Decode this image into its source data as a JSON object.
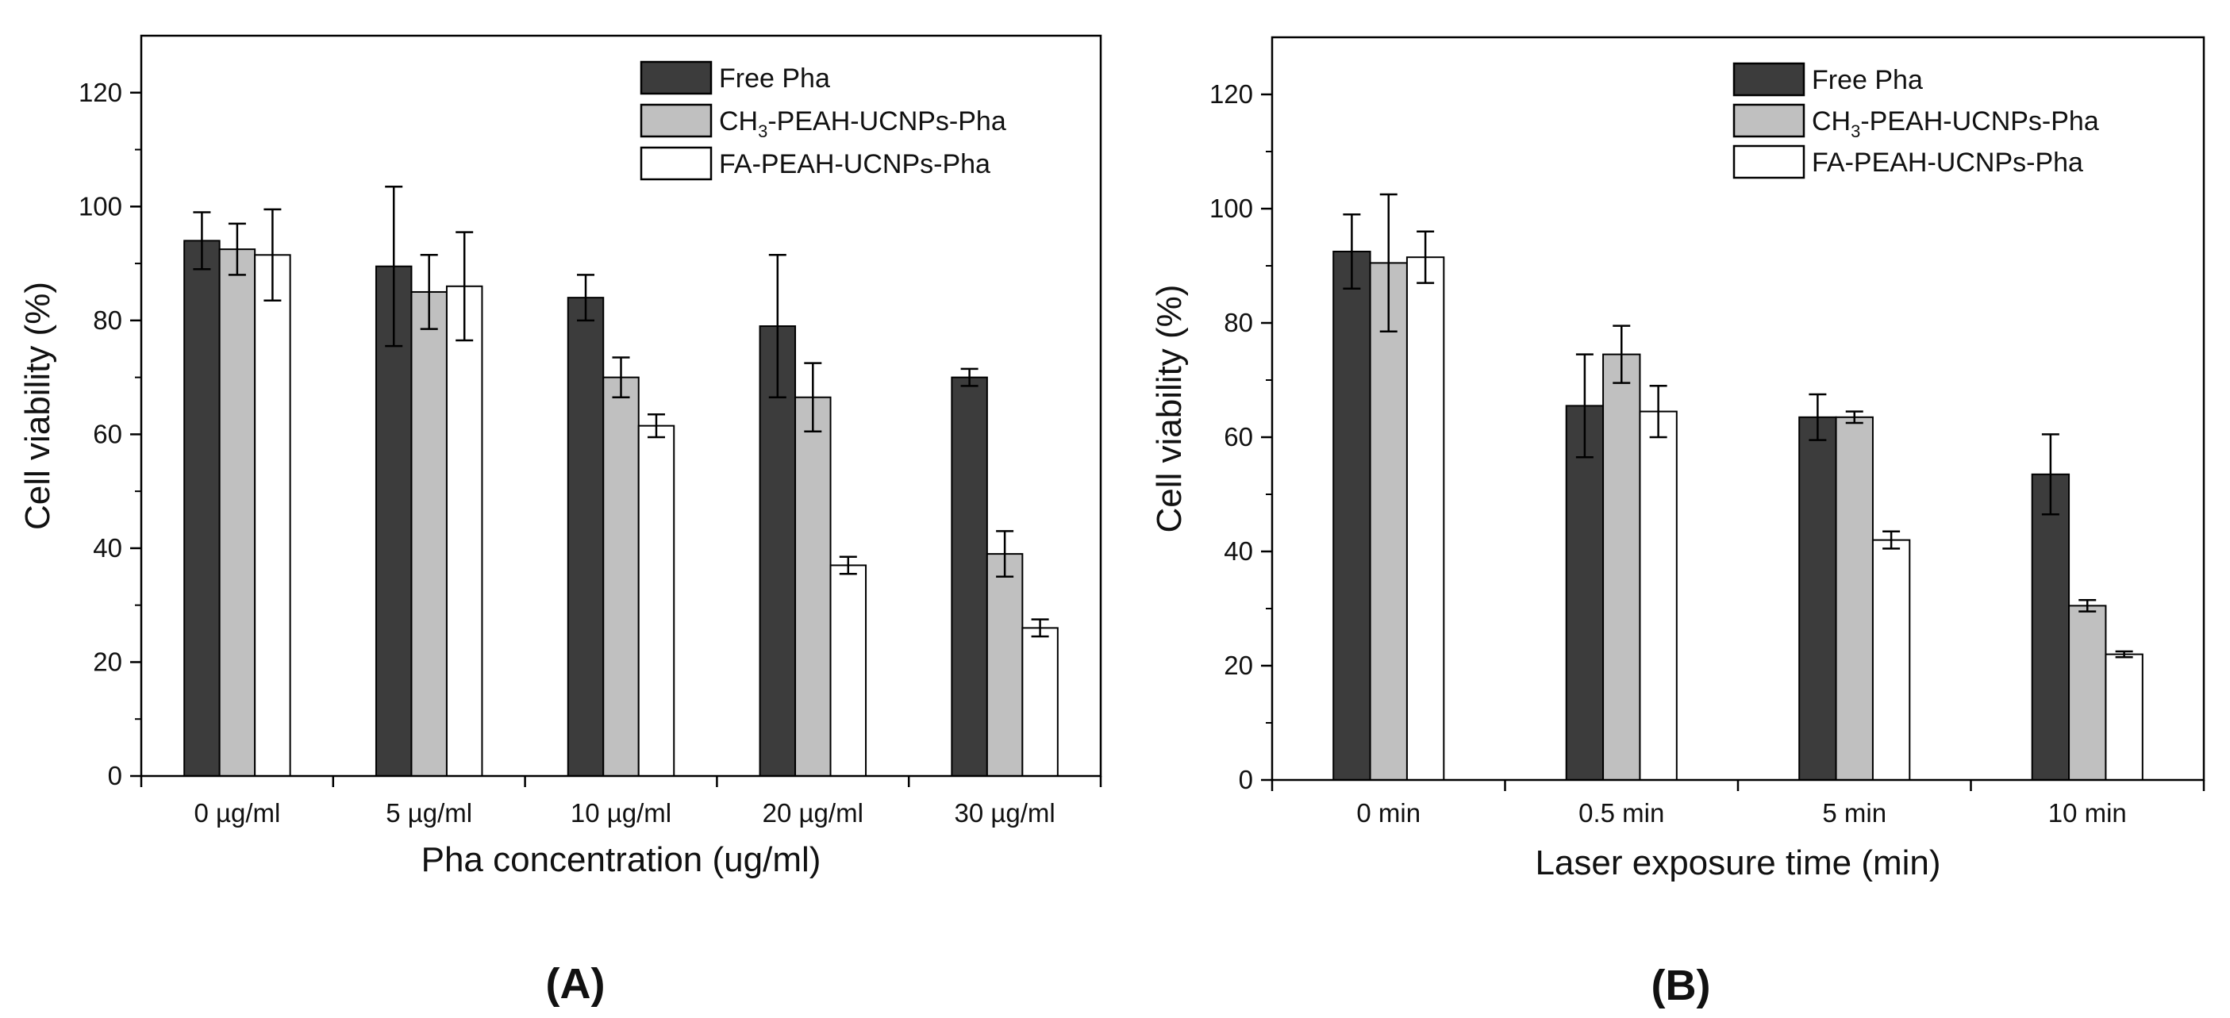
{
  "colors": {
    "free": "#3c3c3c",
    "ch3": "#c0c0c0",
    "fa": "#ffffff",
    "stroke": "#000000",
    "error": "#000000"
  },
  "chart_data": [
    {
      "type": "bar",
      "panel_label": "(A)",
      "xlabel": "Pha concentration (ug/ml)",
      "ylabel": "Cell viability (%)",
      "ylim": [
        0,
        130
      ],
      "yticks": [
        0,
        20,
        40,
        60,
        80,
        100,
        120
      ],
      "categories": [
        "0 µg/ml",
        "5 µg/ml",
        "10 µg/ml",
        "20 µg/ml",
        "30 µg/ml"
      ],
      "legend_position": "top-right",
      "series": [
        {
          "name": "Free Pha",
          "name_parts": [
            "Free Pha"
          ],
          "color_key": "free",
          "values": [
            94,
            89.5,
            84,
            79,
            70
          ],
          "errors": [
            5,
            14,
            4,
            12.5,
            1.5
          ]
        },
        {
          "name": "CH3-PEAH-UCNPs-Pha",
          "name_parts": [
            "CH",
            "3",
            "-PEAH-UCNPs-Pha"
          ],
          "color_key": "ch3",
          "values": [
            92.5,
            85,
            70,
            66.5,
            39
          ],
          "errors": [
            4.5,
            6.5,
            3.5,
            6,
            4
          ]
        },
        {
          "name": "FA-PEAH-UCNPs-Pha",
          "name_parts": [
            "FA-PEAH-UCNPs-Pha"
          ],
          "color_key": "fa",
          "values": [
            91.5,
            86,
            61.5,
            37,
            26
          ],
          "errors": [
            8,
            9.5,
            2,
            1.5,
            1.5
          ]
        }
      ]
    },
    {
      "type": "bar",
      "panel_label": "(B)",
      "xlabel": "Laser exposure time (min)",
      "ylabel": "Cell viability (%)",
      "ylim": [
        0,
        130
      ],
      "yticks": [
        0,
        20,
        40,
        60,
        80,
        100,
        120
      ],
      "categories": [
        "0 min",
        "0.5 min",
        "5 min",
        "10 min"
      ],
      "legend_position": "top-right",
      "series": [
        {
          "name": "Free Pha",
          "name_parts": [
            "Free Pha"
          ],
          "color_key": "free",
          "values": [
            92.5,
            65.5,
            63.5,
            53.5
          ],
          "errors": [
            6.5,
            9,
            4,
            7
          ]
        },
        {
          "name": "CH3-PEAH-UCNPs-Pha",
          "name_parts": [
            "CH",
            "3",
            "-PEAH-UCNPs-Pha"
          ],
          "color_key": "ch3",
          "values": [
            90.5,
            74.5,
            63.5,
            30.5
          ],
          "errors": [
            12,
            5,
            1,
            1
          ]
        },
        {
          "name": "FA-PEAH-UCNPs-Pha",
          "name_parts": [
            "FA-PEAH-UCNPs-Pha"
          ],
          "color_key": "fa",
          "values": [
            91.5,
            64.5,
            42,
            22
          ],
          "errors": [
            4.5,
            4.5,
            1.5,
            0.5
          ]
        }
      ]
    }
  ]
}
